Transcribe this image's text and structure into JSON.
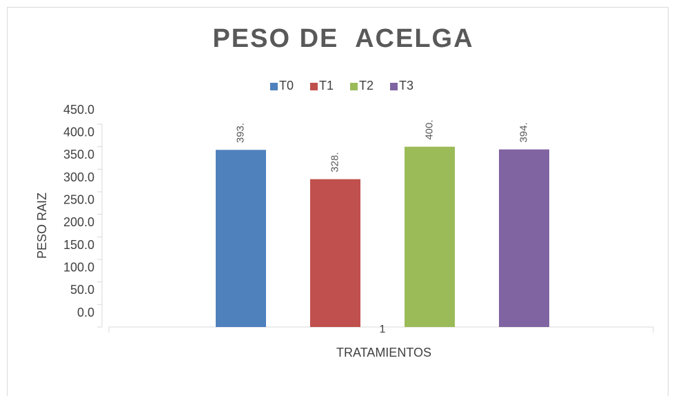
{
  "chart_data": {
    "type": "bar",
    "title": "PESO DE  ACELGA",
    "categories": [
      "1"
    ],
    "series": [
      {
        "name": "T0",
        "color": "#4f81bd",
        "values": [
          393
        ],
        "value_labels": [
          "393."
        ]
      },
      {
        "name": "T1",
        "color": "#c0504d",
        "values": [
          328
        ],
        "value_labels": [
          "328."
        ]
      },
      {
        "name": "T2",
        "color": "#9bbb59",
        "values": [
          400
        ],
        "value_labels": [
          "400."
        ]
      },
      {
        "name": "T3",
        "color": "#8064a2",
        "values": [
          394
        ],
        "value_labels": [
          "394."
        ]
      }
    ],
    "ylim": [
      0,
      450
    ],
    "yticks": [
      {
        "value": 0,
        "label": "0.0"
      },
      {
        "value": 50,
        "label": "50.0"
      },
      {
        "value": 100,
        "label": "100.0"
      },
      {
        "value": 150,
        "label": "150.0"
      },
      {
        "value": 200,
        "label": "200.0"
      },
      {
        "value": 250,
        "label": "250.0"
      },
      {
        "value": 300,
        "label": "300.0"
      },
      {
        "value": 350,
        "label": "350.0"
      },
      {
        "value": 400,
        "label": "400.0"
      },
      {
        "value": 450,
        "label": "450.0"
      }
    ],
    "xlabel": "TRATAMIENTOS",
    "ylabel": "PESO RAIZ",
    "legend": "top",
    "grid": false
  }
}
